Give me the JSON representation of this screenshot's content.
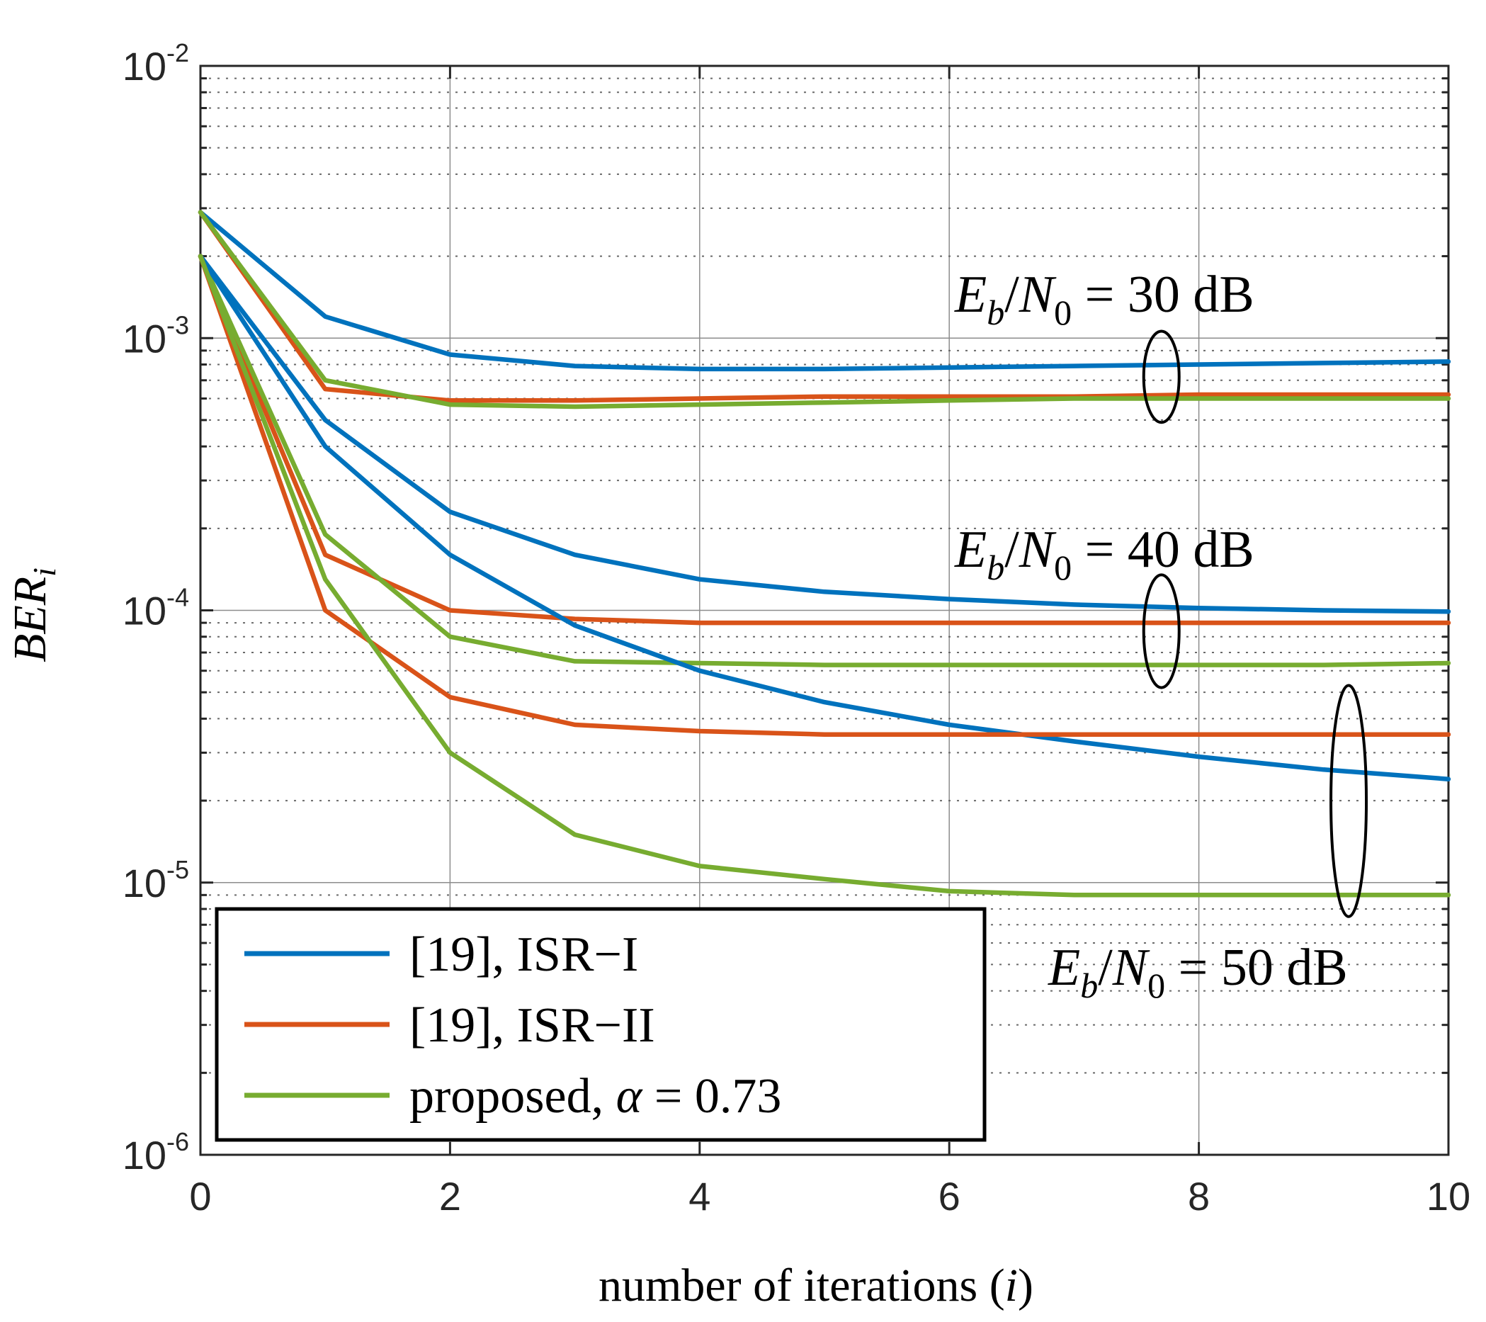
{
  "chart_data": {
    "type": "line",
    "title": "",
    "xlabel": "number of iterations",
    "xlabel_var": "i",
    "ylabel_main": "BER",
    "ylabel_sub": "i",
    "xlim": [
      0,
      10
    ],
    "ylim": [
      1e-06,
      0.01
    ],
    "yscale": "log",
    "xticks": [
      0,
      2,
      4,
      6,
      8,
      10
    ],
    "yticks": [
      {
        "value": 0.01,
        "base": "10",
        "exp": "-2"
      },
      {
        "value": 0.001,
        "base": "10",
        "exp": "-3"
      },
      {
        "value": 0.0001,
        "base": "10",
        "exp": "-4"
      },
      {
        "value": 1e-05,
        "base": "10",
        "exp": "-5"
      },
      {
        "value": 1e-06,
        "base": "10",
        "exp": "-6"
      }
    ],
    "grid": true,
    "x": [
      0,
      1,
      2,
      3,
      4,
      5,
      6,
      7,
      8,
      9,
      10
    ],
    "colors": {
      "isr1": "#0072bd",
      "isr2": "#d95319",
      "proposed": "#77ac30"
    },
    "series": [
      {
        "id": "isr1-30",
        "group": "isr1",
        "snr_db": 30,
        "values": [
          0.0029,
          0.0012,
          0.00087,
          0.00079,
          0.00077,
          0.00077,
          0.00078,
          0.00079,
          0.0008,
          0.00081,
          0.00082
        ]
      },
      {
        "id": "isr2-30",
        "group": "isr2",
        "snr_db": 30,
        "values": [
          0.0029,
          0.00065,
          0.00059,
          0.00059,
          0.0006,
          0.00061,
          0.00061,
          0.00061,
          0.00062,
          0.00062,
          0.00062
        ]
      },
      {
        "id": "prop-30",
        "group": "proposed",
        "snr_db": 30,
        "values": [
          0.0029,
          0.0007,
          0.00057,
          0.00056,
          0.00057,
          0.00058,
          0.00059,
          0.0006,
          0.0006,
          0.0006,
          0.0006
        ]
      },
      {
        "id": "isr1-40",
        "group": "isr1",
        "snr_db": 40,
        "values": [
          0.002,
          0.0005,
          0.00023,
          0.00016,
          0.00013,
          0.000117,
          0.00011,
          0.000105,
          0.000102,
          0.0001,
          9.9e-05
        ]
      },
      {
        "id": "isr2-40",
        "group": "isr2",
        "snr_db": 40,
        "values": [
          0.002,
          0.00016,
          0.0001,
          9.3e-05,
          9e-05,
          9e-05,
          9e-05,
          9e-05,
          9e-05,
          9e-05,
          9e-05
        ]
      },
      {
        "id": "prop-40",
        "group": "proposed",
        "snr_db": 40,
        "values": [
          0.002,
          0.00019,
          8e-05,
          6.5e-05,
          6.4e-05,
          6.3e-05,
          6.3e-05,
          6.3e-05,
          6.3e-05,
          6.3e-05,
          6.4e-05
        ]
      },
      {
        "id": "isr1-50",
        "group": "isr1",
        "snr_db": 50,
        "values": [
          0.002,
          0.0004,
          0.00016,
          8.8e-05,
          6e-05,
          4.6e-05,
          3.8e-05,
          3.3e-05,
          2.9e-05,
          2.6e-05,
          2.4e-05
        ]
      },
      {
        "id": "isr2-50",
        "group": "isr2",
        "snr_db": 50,
        "values": [
          0.002,
          0.0001,
          4.8e-05,
          3.8e-05,
          3.6e-05,
          3.5e-05,
          3.5e-05,
          3.5e-05,
          3.5e-05,
          3.5e-05,
          3.5e-05
        ]
      },
      {
        "id": "prop-50",
        "group": "proposed",
        "snr_db": 50,
        "values": [
          0.002,
          0.00013,
          3e-05,
          1.5e-05,
          1.15e-05,
          1.03e-05,
          9.3e-06,
          9e-06,
          9e-06,
          9e-06,
          9e-06
        ]
      }
    ],
    "legend": {
      "position": "bottom-left",
      "entries": [
        {
          "group": "isr1",
          "label": "[19], ISR−I"
        },
        {
          "group": "isr2",
          "label": "[19], ISR−II"
        },
        {
          "group": "proposed",
          "label_prefix": "proposed,",
          "label_var": "α",
          "label_suffix": "= 0.73"
        }
      ]
    },
    "annotations": [
      {
        "id": "ann-30",
        "snr_db": 30,
        "E": "E",
        "E_sub": "b",
        "slash": "/",
        "N": "N",
        "N_sub": "0",
        "rest": "= 30 dB",
        "ellipse": {
          "x": 7.7,
          "y_low": 0.00049,
          "y_high": 0.00106
        }
      },
      {
        "id": "ann-40",
        "snr_db": 40,
        "E": "E",
        "E_sub": "b",
        "slash": "/",
        "N": "N",
        "N_sub": "0",
        "rest": "= 40 dB",
        "ellipse": {
          "x": 7.7,
          "y_low": 5.2e-05,
          "y_high": 0.000135
        }
      },
      {
        "id": "ann-50",
        "snr_db": 50,
        "E": "E",
        "E_sub": "b",
        "slash": "/",
        "N": "N",
        "N_sub": "0",
        "rest": "= 50 dB",
        "ellipse": {
          "x": 9.2,
          "y_low": 7.5e-06,
          "y_high": 5.3e-05
        }
      }
    ]
  }
}
